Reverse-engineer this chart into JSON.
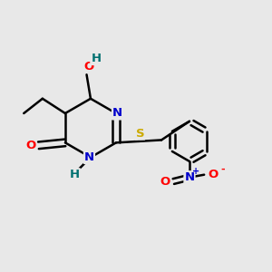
{
  "bg_color": "#e8e8e8",
  "atom_colors": {
    "C": "#000000",
    "N": "#0000cc",
    "O": "#ff0000",
    "S": "#ccaa00",
    "H": "#007070"
  },
  "bond_color": "#000000",
  "bond_width": 1.8,
  "figsize": [
    3.0,
    3.0
  ],
  "dpi": 100,
  "xlim": [
    0,
    10
  ],
  "ylim": [
    0,
    10
  ]
}
